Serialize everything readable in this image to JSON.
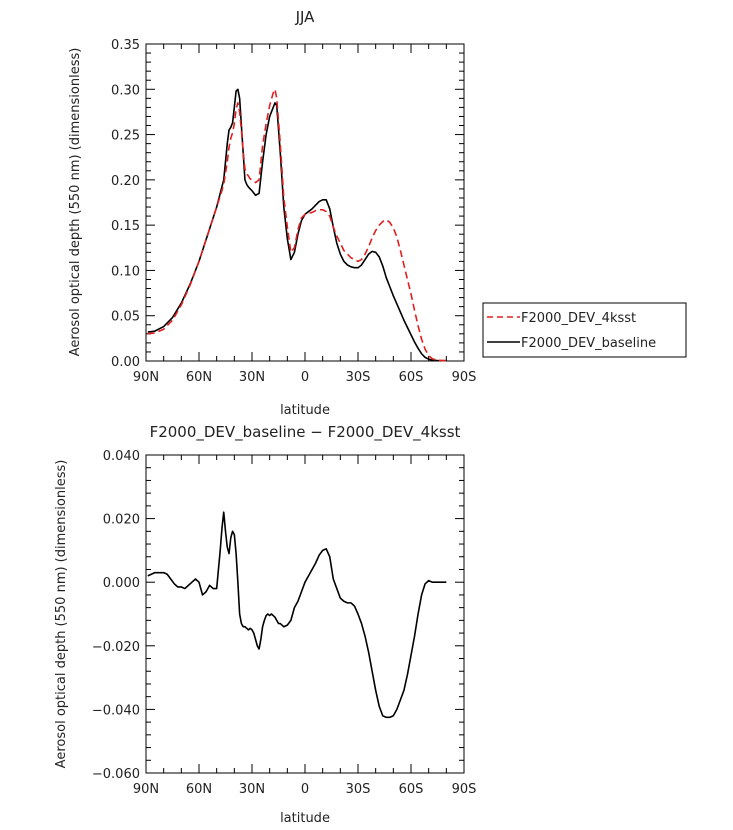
{
  "chart_data": [
    {
      "type": "line",
      "title": "JJA",
      "xlabel": "latitude",
      "ylabel": "Aerosol optical depth (550 nm) (dimensionless)",
      "xlim": [
        90,
        -90
      ],
      "ylim": [
        0.0,
        0.35
      ],
      "x_ticks": [
        90,
        60,
        30,
        0,
        -30,
        -60,
        -90
      ],
      "x_tick_labels": [
        "90N",
        "60N",
        "30N",
        "0",
        "30S",
        "60S",
        "90S"
      ],
      "y_ticks": [
        0.0,
        0.05,
        0.1,
        0.15,
        0.2,
        0.25,
        0.3,
        0.35
      ],
      "y_tick_labels": [
        "0.00",
        "0.05",
        "0.10",
        "0.15",
        "0.20",
        "0.25",
        "0.30",
        "0.35"
      ],
      "legend": {
        "placement": "right",
        "entries": [
          {
            "name": "F2000_DEV_4ksst",
            "color": "#e02020",
            "style": "dashed"
          },
          {
            "name": "F2000_DEV_baseline",
            "color": "#000000",
            "style": "solid"
          }
        ]
      },
      "series": [
        {
          "name": "F2000_DEV_baseline",
          "color": "#000000",
          "style": "solid",
          "x": [
            89,
            85,
            80,
            75,
            70,
            65,
            60,
            55,
            50,
            48,
            46,
            44,
            43,
            42,
            41,
            40,
            39,
            38,
            37,
            36,
            35,
            34,
            33,
            32,
            31,
            30,
            28,
            26,
            24,
            22,
            20,
            18,
            17,
            16,
            14,
            12,
            10,
            8,
            6,
            4,
            2,
            0,
            -2,
            -4,
            -6,
            -8,
            -10,
            -12,
            -14,
            -16,
            -18,
            -20,
            -22,
            -24,
            -26,
            -28,
            -30,
            -32,
            -34,
            -36,
            -38,
            -40,
            -42,
            -44,
            -46,
            -48,
            -50,
            -52,
            -54,
            -56,
            -58,
            -60,
            -62,
            -64,
            -66,
            -68,
            -70,
            -72,
            -75,
            -80
          ],
          "y": [
            0.032,
            0.033,
            0.038,
            0.048,
            0.064,
            0.085,
            0.11,
            0.14,
            0.17,
            0.185,
            0.2,
            0.24,
            0.255,
            0.258,
            0.263,
            0.28,
            0.298,
            0.3,
            0.29,
            0.26,
            0.23,
            0.2,
            0.195,
            0.192,
            0.19,
            0.188,
            0.183,
            0.185,
            0.22,
            0.25,
            0.27,
            0.28,
            0.285,
            0.282,
            0.23,
            0.17,
            0.135,
            0.112,
            0.12,
            0.14,
            0.155,
            0.162,
            0.165,
            0.168,
            0.172,
            0.176,
            0.178,
            0.178,
            0.168,
            0.148,
            0.13,
            0.118,
            0.11,
            0.106,
            0.104,
            0.103,
            0.103,
            0.106,
            0.112,
            0.118,
            0.121,
            0.12,
            0.115,
            0.105,
            0.092,
            0.082,
            0.072,
            0.063,
            0.054,
            0.045,
            0.037,
            0.029,
            0.021,
            0.014,
            0.008,
            0.004,
            0.002,
            0.001,
            0.0005,
            0.0003
          ]
        },
        {
          "name": "F2000_DEV_4ksst",
          "color": "#e02020",
          "style": "dashed",
          "x": [
            89,
            85,
            80,
            75,
            70,
            65,
            60,
            55,
            50,
            48,
            46,
            44,
            43,
            42,
            41,
            40,
            39,
            38,
            37,
            36,
            35,
            34,
            33,
            32,
            31,
            30,
            28,
            26,
            24,
            22,
            20,
            18,
            17,
            16,
            14,
            12,
            10,
            8,
            6,
            4,
            2,
            0,
            -2,
            -4,
            -6,
            -8,
            -10,
            -12,
            -14,
            -16,
            -18,
            -20,
            -22,
            -24,
            -26,
            -28,
            -30,
            -32,
            -34,
            -36,
            -38,
            -40,
            -42,
            -44,
            -46,
            -48,
            -50,
            -52,
            -54,
            -56,
            -58,
            -60,
            -62,
            -64,
            -66,
            -68,
            -70,
            -72,
            -75,
            -80
          ],
          "y": [
            0.03,
            0.031,
            0.035,
            0.045,
            0.062,
            0.084,
            0.11,
            0.14,
            0.17,
            0.182,
            0.195,
            0.22,
            0.236,
            0.246,
            0.252,
            0.262,
            0.278,
            0.285,
            0.275,
            0.255,
            0.232,
            0.212,
            0.207,
            0.204,
            0.201,
            0.2,
            0.197,
            0.2,
            0.238,
            0.262,
            0.282,
            0.296,
            0.3,
            0.29,
            0.24,
            0.18,
            0.148,
            0.12,
            0.125,
            0.145,
            0.158,
            0.162,
            0.163,
            0.164,
            0.166,
            0.167,
            0.167,
            0.165,
            0.16,
            0.148,
            0.138,
            0.13,
            0.122,
            0.118,
            0.114,
            0.112,
            0.11,
            0.112,
            0.118,
            0.126,
            0.136,
            0.144,
            0.15,
            0.154,
            0.156,
            0.153,
            0.147,
            0.137,
            0.122,
            0.106,
            0.09,
            0.074,
            0.056,
            0.039,
            0.024,
            0.013,
            0.006,
            0.0025,
            0.0008,
            0.0003
          ]
        }
      ]
    },
    {
      "type": "line",
      "title": "F2000_DEV_baseline − F2000_DEV_4ksst",
      "xlabel": "latitude",
      "ylabel": "Aerosol optical depth (550 nm) (dimensionless)",
      "xlim": [
        90,
        -90
      ],
      "ylim": [
        -0.06,
        0.04
      ],
      "x_ticks": [
        90,
        60,
        30,
        0,
        -30,
        -60,
        -90
      ],
      "x_tick_labels": [
        "90N",
        "60N",
        "30N",
        "0",
        "30S",
        "60S",
        "90S"
      ],
      "y_ticks": [
        -0.06,
        -0.04,
        -0.02,
        0.0,
        0.02,
        0.04
      ],
      "y_tick_labels": [
        "−0.060",
        "−0.040",
        "−0.020",
        "0.000",
        "0.020",
        "0.040"
      ],
      "series": [
        {
          "name": "F2000_DEV_baseline − F2000_DEV_4ksst",
          "color": "#000000",
          "style": "solid",
          "x": [
            89,
            87,
            85,
            83,
            80,
            78,
            76,
            74,
            72,
            70,
            68,
            66,
            64,
            62,
            60,
            58,
            56,
            54,
            52,
            50,
            48,
            47,
            46,
            45,
            44,
            43,
            42,
            41,
            40,
            39,
            38,
            37,
            36,
            35,
            34,
            33,
            32,
            31,
            30,
            29,
            28,
            27,
            26,
            25,
            24,
            23,
            22,
            21,
            20,
            19,
            18,
            17,
            16,
            15,
            14,
            12,
            10,
            8,
            6,
            4,
            2,
            0,
            -2,
            -4,
            -6,
            -8,
            -10,
            -12,
            -14,
            -16,
            -18,
            -20,
            -22,
            -24,
            -26,
            -28,
            -30,
            -32,
            -34,
            -36,
            -38,
            -40,
            -42,
            -44,
            -46,
            -48,
            -50,
            -52,
            -54,
            -56,
            -58,
            -60,
            -62,
            -64,
            -66,
            -68,
            -70,
            -72,
            -75,
            -80
          ],
          "y": [
            0.002,
            0.0025,
            0.003,
            0.003,
            0.003,
            0.0025,
            0.001,
            -0.0005,
            -0.0015,
            -0.0015,
            -0.002,
            -0.001,
            0.0,
            0.001,
            0.0,
            -0.004,
            -0.003,
            -0.001,
            -0.002,
            -0.002,
            0.01,
            0.017,
            0.022,
            0.016,
            0.011,
            0.009,
            0.014,
            0.016,
            0.015,
            0.009,
            0.0,
            -0.01,
            -0.013,
            -0.014,
            -0.014,
            -0.0145,
            -0.015,
            -0.0145,
            -0.015,
            -0.016,
            -0.018,
            -0.02,
            -0.021,
            -0.018,
            -0.014,
            -0.012,
            -0.0105,
            -0.01,
            -0.0105,
            -0.01,
            -0.0105,
            -0.011,
            -0.012,
            -0.013,
            -0.013,
            -0.014,
            -0.0135,
            -0.012,
            -0.008,
            -0.006,
            -0.003,
            0.0,
            0.002,
            0.004,
            0.006,
            0.0085,
            0.01,
            0.0105,
            0.008,
            0.001,
            -0.002,
            -0.005,
            -0.006,
            -0.0065,
            -0.0065,
            -0.0075,
            -0.01,
            -0.013,
            -0.017,
            -0.022,
            -0.028,
            -0.034,
            -0.039,
            -0.042,
            -0.0425,
            -0.0425,
            -0.042,
            -0.04,
            -0.037,
            -0.034,
            -0.029,
            -0.023,
            -0.017,
            -0.01,
            -0.004,
            -0.0005,
            0.0005,
            0.0,
            0.0,
            0.0
          ]
        }
      ]
    }
  ]
}
